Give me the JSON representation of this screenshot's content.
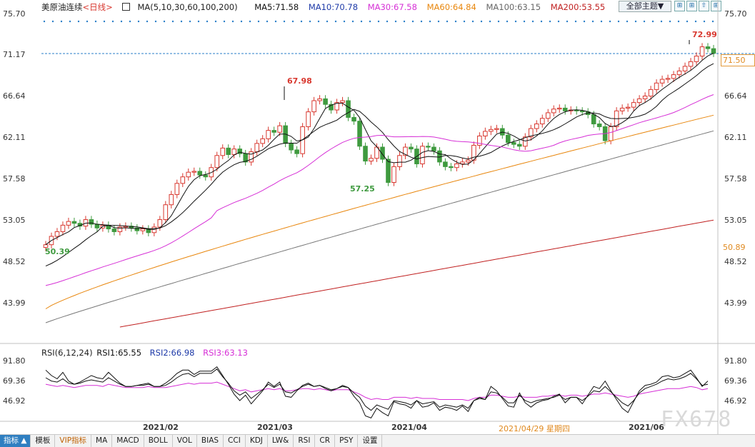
{
  "legend": {
    "title": "美原油连续",
    "period": "<日线>",
    "ma_params": "MA(5,10,30,60,100,200)",
    "ma5": "MA5:71.58",
    "ma10": "MA10:70.78",
    "ma30": "MA30:67.58",
    "ma60": "MA60:64.84",
    "ma100": "MA100:63.15",
    "ma200": "MA200:53.55"
  },
  "toolbar": {
    "theme_label": "全部主题▼",
    "btn1": "⊞",
    "btn2": "⊞",
    "btn3": "⇧",
    "btn4": "⊞"
  },
  "colors": {
    "up": "#d8382f",
    "down": "#3f9a3f",
    "ma5": "#111111",
    "ma10": "#111111",
    "ma30": "#d62fd6",
    "ma60": "#e8860c",
    "ma100": "#777777",
    "ma200": "#c02020",
    "rsi1": "#111111",
    "rsi2": "#111111",
    "rsi3": "#d62fd6"
  },
  "price_axis": {
    "left": [
      "75.70",
      "71.17",
      "66.64",
      "62.11",
      "57.58",
      "53.05",
      "48.52",
      "43.99"
    ],
    "right": [
      "75.70",
      "71.17",
      "66.64",
      "62.11",
      "57.58",
      "53.05",
      "48.52",
      "43.99"
    ],
    "current_price": "71.50",
    "ma_marker": "50.89"
  },
  "annotations": {
    "high_1": "67.98",
    "low_1": "57.25",
    "start_low": "50.39",
    "high_2": "72.99"
  },
  "rsi": {
    "legend": "RSI(6,12,24)",
    "rsi1": "RSI1:65.55",
    "rsi2": "RSI2:66.98",
    "rsi3": "RSI3:63.13",
    "axis": [
      "91.80",
      "69.36",
      "46.92"
    ]
  },
  "dates": [
    "2021/02",
    "2021/03",
    "2021/04",
    "2021/06"
  ],
  "cursor_date": "2021/04/29 星期四",
  "watermark": "FX678",
  "bottom_tabs": [
    "指标 ▲",
    "模板",
    "VIP指标",
    "MA",
    "MACD",
    "BOLL",
    "VOL",
    "BIAS",
    "CCI",
    "KDJ",
    "LW&",
    "RSI",
    "CR",
    "PSY",
    "设置"
  ],
  "chart_data": {
    "type": "candlestick",
    "title": "美原油连续 <日线>",
    "ylim": [
      40.5,
      75.7
    ],
    "series_close": [
      50.9,
      51.8,
      52.3,
      53.0,
      53.4,
      53.2,
      52.9,
      53.6,
      53.1,
      52.7,
      53.0,
      52.6,
      52.3,
      52.8,
      52.9,
      52.7,
      52.4,
      52.6,
      52.2,
      52.8,
      53.6,
      55.2,
      56.3,
      57.5,
      58.2,
      58.7,
      58.8,
      58.4,
      58.2,
      59.2,
      60.5,
      61.3,
      60.6,
      61.2,
      60.7,
      59.8,
      60.9,
      61.8,
      62.3,
      63.2,
      63.0,
      63.7,
      61.8,
      61.1,
      60.7,
      63.6,
      65.2,
      66.4,
      66.6,
      66.0,
      65.4,
      66.2,
      66.4,
      64.6,
      64.2,
      61.5,
      59.9,
      60.2,
      61.4,
      60.1,
      57.6,
      59.3,
      60.5,
      61.4,
      61.2,
      59.6,
      61.5,
      61.4,
      61.0,
      59.8,
      59.3,
      59.2,
      59.6,
      59.8,
      60.0,
      61.6,
      62.6,
      63.1,
      63.3,
      63.4,
      62.7,
      61.9,
      61.7,
      61.5,
      62.5,
      63.4,
      63.9,
      64.5,
      65.1,
      65.5,
      65.6,
      65.3,
      65.4,
      65.3,
      65.2,
      64.9,
      63.9,
      63.6,
      62.1,
      63.6,
      65.3,
      65.6,
      65.7,
      66.2,
      66.6,
      66.9,
      67.6,
      68.3,
      68.7,
      68.8,
      69.2,
      69.6,
      70.1,
      70.6,
      71.2,
      72.2,
      72.0,
      71.5
    ],
    "rsi": {
      "rsi1": [
        85,
        80,
        77,
        83,
        75,
        72,
        74,
        77,
        80,
        78,
        77,
        83,
        78,
        73,
        70,
        70,
        71,
        72,
        73,
        70,
        70,
        73,
        77,
        82,
        85,
        85,
        81,
        84,
        84,
        84,
        88,
        80,
        72,
        63,
        57,
        62,
        54,
        60,
        66,
        74,
        70,
        74,
        61,
        60,
        66,
        71,
        73,
        70,
        71,
        68,
        66,
        68,
        71,
        69,
        61,
        55,
        43,
        41,
        50,
        46,
        43,
        56,
        54,
        53,
        50,
        57,
        51,
        52,
        55,
        48,
        51,
        50,
        48,
        52,
        47,
        57,
        60,
        58,
        70,
        66,
        59,
        52,
        51,
        64,
        55,
        51,
        55,
        57,
        58,
        61,
        63,
        55,
        60,
        60,
        54,
        62,
        70,
        68,
        75,
        66,
        58,
        50,
        46,
        56,
        66,
        71,
        72,
        74,
        79,
        80,
        78,
        79,
        82,
        85,
        78,
        70,
        75
      ],
      "rsi2": [
        78,
        75,
        74,
        77,
        73,
        72,
        73,
        75,
        76,
        75,
        74,
        78,
        75,
        72,
        70,
        70,
        71,
        71,
        72,
        70,
        70,
        71,
        74,
        78,
        81,
        82,
        79,
        82,
        82,
        82,
        86,
        79,
        73,
        66,
        62,
        65,
        59,
        63,
        67,
        72,
        69,
        72,
        65,
        64,
        67,
        70,
        72,
        70,
        71,
        69,
        67,
        68,
        70,
        69,
        64,
        60,
        52,
        48,
        53,
        51,
        49,
        57,
        56,
        55,
        53,
        57,
        54,
        55,
        56,
        51,
        53,
        52,
        51,
        53,
        50,
        57,
        59,
        58,
        65,
        64,
        60,
        55,
        55,
        62,
        57,
        55,
        57,
        58,
        59,
        60,
        62,
        58,
        60,
        60,
        57,
        61,
        66,
        65,
        70,
        65,
        60,
        55,
        52,
        57,
        64,
        68,
        70,
        72,
        75,
        77,
        76,
        77,
        79,
        82,
        77,
        71,
        72
      ],
      "rsi3": [
        72,
        71,
        70,
        71,
        70,
        69,
        70,
        71,
        71,
        71,
        70,
        72,
        71,
        70,
        69,
        69,
        69,
        69,
        70,
        69,
        69,
        69,
        70,
        71,
        72,
        73,
        72,
        73,
        73,
        73,
        74,
        72,
        70,
        68,
        66,
        67,
        65,
        66,
        67,
        68,
        67,
        68,
        66,
        66,
        67,
        68,
        68,
        67,
        68,
        67,
        66,
        67,
        67,
        67,
        65,
        63,
        60,
        58,
        59,
        58,
        58,
        60,
        60,
        60,
        59,
        60,
        59,
        59,
        59,
        58,
        58,
        58,
        58,
        58,
        57,
        59,
        60,
        60,
        62,
        62,
        61,
        60,
        60,
        61,
        60,
        60,
        60,
        61,
        61,
        62,
        62,
        61,
        62,
        62,
        61,
        62,
        63,
        63,
        64,
        63,
        62,
        61,
        60,
        61,
        63,
        64,
        65,
        66,
        67,
        68,
        68,
        68,
        69,
        70,
        69,
        67,
        68
      ]
    },
    "rsi_ylim": [
      38,
      97
    ]
  }
}
